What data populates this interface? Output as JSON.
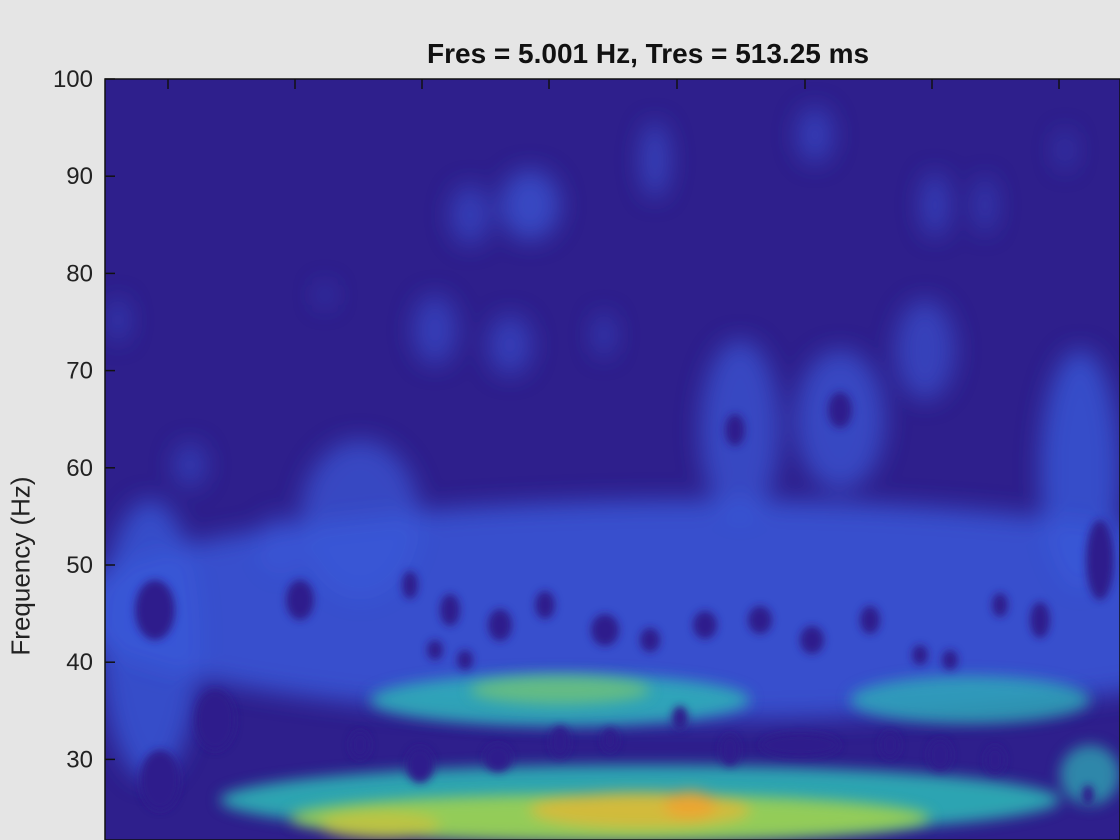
{
  "chart_data": {
    "type": "heatmap",
    "title": "Fres = 5.001 Hz, Tres = 513.25 ms",
    "ylabel": "Frequency (Hz)",
    "xlabel": "",
    "ylim": [
      20,
      100
    ],
    "y_ticks": [
      30,
      40,
      50,
      60,
      70,
      80,
      90,
      100
    ],
    "y_tick_labels": [
      "30",
      "40",
      "50",
      "60",
      "70",
      "80",
      "90",
      "100"
    ],
    "colormap": "parula",
    "background_color": "#2e1f8c",
    "dominant_band_hz": [
      20,
      30
    ],
    "secondary_band_hz": [
      33,
      38
    ],
    "grid": false,
    "colors": {
      "low": "#2e1f8c",
      "mid_low": "#3b5ce0",
      "mid": "#2fb3b8",
      "mid_high": "#9fcf52",
      "high": "#e6b336"
    }
  }
}
